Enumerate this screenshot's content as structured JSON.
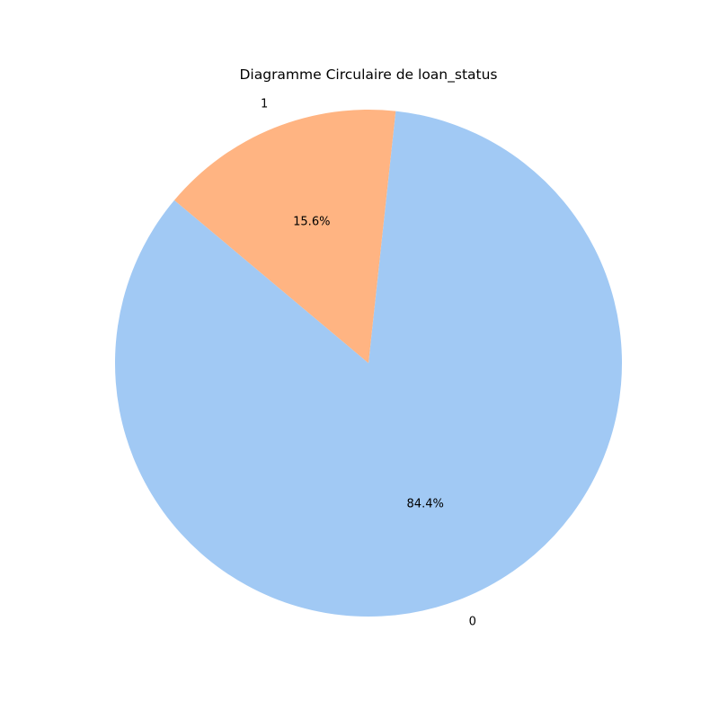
{
  "chart_data": {
    "type": "pie",
    "title": "Diagramme Circulaire de loan_status",
    "categories": [
      "0",
      "1"
    ],
    "values": [
      84.4,
      15.6
    ],
    "value_labels": [
      "84.4%",
      "15.6%"
    ],
    "colors": [
      "#a1c9f4",
      "#ffb482"
    ],
    "start_angle_deg": 140,
    "direction": "counterclockwise"
  }
}
